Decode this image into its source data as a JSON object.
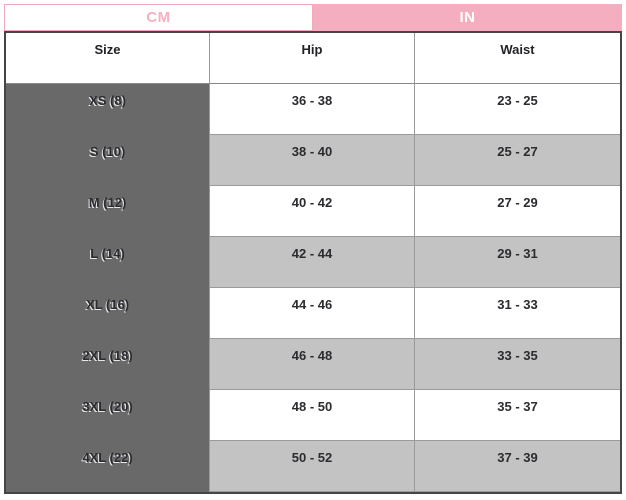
{
  "tabs": {
    "cm": {
      "label": "CM",
      "active": false
    },
    "in": {
      "label": "IN",
      "active": true
    }
  },
  "table": {
    "columns": {
      "size": "Size",
      "hip": "Hip",
      "waist": "Waist"
    },
    "rows": [
      {
        "size": "XS (8)",
        "hip": "36 - 38",
        "waist": "23 - 25"
      },
      {
        "size": "S (10)",
        "hip": "38 - 40",
        "waist": "25 - 27"
      },
      {
        "size": "M (12)",
        "hip": "40 - 42",
        "waist": "27 - 29"
      },
      {
        "size": "L (14)",
        "hip": "42 - 44",
        "waist": "29 - 31"
      },
      {
        "size": "XL (16)",
        "hip": "44 - 46",
        "waist": "31 - 33"
      },
      {
        "size": "2XL (18)",
        "hip": "46 - 48",
        "waist": "33 - 35"
      },
      {
        "size": "3XL (20)",
        "hip": "48 - 50",
        "waist": "35 - 37"
      },
      {
        "size": "4XL (22)",
        "hip": "50 - 52",
        "waist": "37 - 39"
      }
    ]
  },
  "colors": {
    "accent_pink": "#f4aebf",
    "pink_text": "#f6b0c1",
    "size_column_gray": "#696969",
    "alt_row_gray": "#c3c3c3",
    "border_dark": "#454545",
    "grid_line": "#9a9a9a",
    "text_dark": "#2b2b30"
  }
}
